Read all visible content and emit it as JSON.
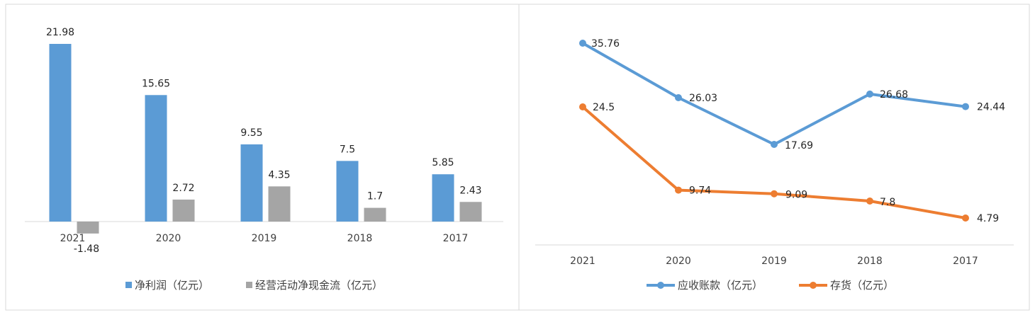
{
  "chart_data": [
    {
      "type": "bar",
      "categories": [
        "2021",
        "2020",
        "2019",
        "2018",
        "2017"
      ],
      "series": [
        {
          "name": "净利润（亿元）",
          "values": [
            21.98,
            15.65,
            9.55,
            7.5,
            5.85
          ],
          "color": "#5b9bd5"
        },
        {
          "name": "经营活动净现金流（亿元）",
          "values": [
            -1.48,
            2.72,
            4.35,
            1.7,
            2.43
          ],
          "color": "#a5a5a5"
        }
      ],
      "ylim": [
        -1.48,
        21.98
      ],
      "grid": false,
      "legend": "bottom"
    },
    {
      "type": "line",
      "categories": [
        "2021",
        "2020",
        "2019",
        "2018",
        "2017"
      ],
      "series": [
        {
          "name": "应收账款（亿元）",
          "values": [
            35.76,
            26.03,
            17.69,
            26.68,
            24.44
          ],
          "color": "#5b9bd5"
        },
        {
          "name": "存货（亿元）",
          "values": [
            24.5,
            9.74,
            9.09,
            7.8,
            4.79
          ],
          "color": "#ed7d31"
        }
      ],
      "ylim": [
        0,
        40
      ],
      "grid": false,
      "legend": "bottom"
    }
  ]
}
